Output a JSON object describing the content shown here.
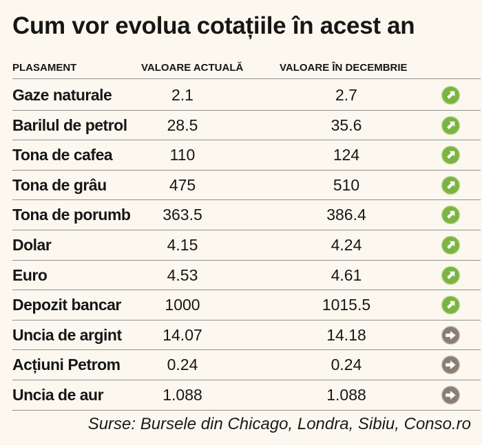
{
  "title": "Cum vor evolua cotațiile în acest an",
  "columns": [
    "PLASAMENT",
    "VALOARE ACTUALĂ",
    "VALOARE ÎN DECEMBRIE"
  ],
  "rows": [
    {
      "label": "Gaze naturale",
      "current": "2.1",
      "december": "2.7",
      "trend": "up"
    },
    {
      "label": "Barilul de petrol",
      "current": "28.5",
      "december": "35.6",
      "trend": "up"
    },
    {
      "label": "Tona de cafea",
      "current": "110",
      "december": "124",
      "trend": "up"
    },
    {
      "label": "Tona de grâu",
      "current": "475",
      "december": "510",
      "trend": "up"
    },
    {
      "label": "Tona de porumb",
      "current": "363.5",
      "december": "386.4",
      "trend": "up"
    },
    {
      "label": "Dolar",
      "current": "4.15",
      "december": "4.24",
      "trend": "up"
    },
    {
      "label": "Euro",
      "current": "4.53",
      "december": "4.61",
      "trend": "up"
    },
    {
      "label": "Depozit bancar",
      "current": "1000",
      "december": "1015.5",
      "trend": "up"
    },
    {
      "label": "Uncia de argint",
      "current": "14.07",
      "december": "14.18",
      "trend": "flat"
    },
    {
      "label": "Acțiuni Petrom",
      "current": "0.24",
      "december": "0.24",
      "trend": "flat"
    },
    {
      "label": "Uncia de aur",
      "current": "1.088",
      "december": "1.088",
      "trend": "flat"
    }
  ],
  "icons": {
    "up": {
      "name": "arrow-up-right-icon",
      "fill": "#7cb342",
      "stroke": "#c2dca0"
    },
    "flat": {
      "name": "arrow-right-icon",
      "fill": "#8a7e72",
      "stroke": "#cfc8bf"
    }
  },
  "source": "Surse: Bursele din Chicago, Londra, Sibiu, Conso.ro"
}
